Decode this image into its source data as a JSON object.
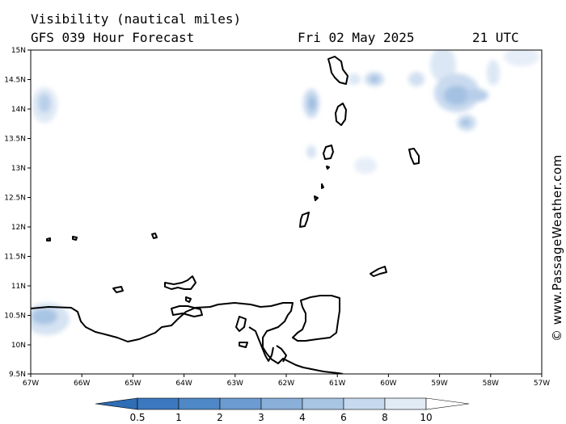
{
  "header": {
    "title_line1": "Visibility (nautical miles)",
    "title_line2": "GFS 039 Hour Forecast",
    "date": "Fri 02 May 2025",
    "time": "21 UTC"
  },
  "axes": {
    "lat_labels": [
      "15N",
      "14.5N",
      "14N",
      "13.5N",
      "13N",
      "12.5N",
      "12N",
      "11.5N",
      "11N",
      "10.5N",
      "10N",
      "9.5N"
    ],
    "lon_labels": [
      "67W",
      "66W",
      "65W",
      "64W",
      "63W",
      "62W",
      "61W",
      "60W",
      "59W",
      "58W",
      "57W"
    ]
  },
  "colorbar": {
    "labels": [
      "0.5",
      "1",
      "2",
      "3",
      "4",
      "6",
      "8",
      "10"
    ],
    "colors": [
      "#3b78be",
      "#4f88c6",
      "#6b9bd0",
      "#8aafd9",
      "#a8c5e3",
      "#c6d9ee",
      "#e1ebf6",
      "#ffffff"
    ]
  },
  "credit": "© www.PassageWeather.com",
  "icons": {
    "copyright": "copyright-icon"
  }
}
